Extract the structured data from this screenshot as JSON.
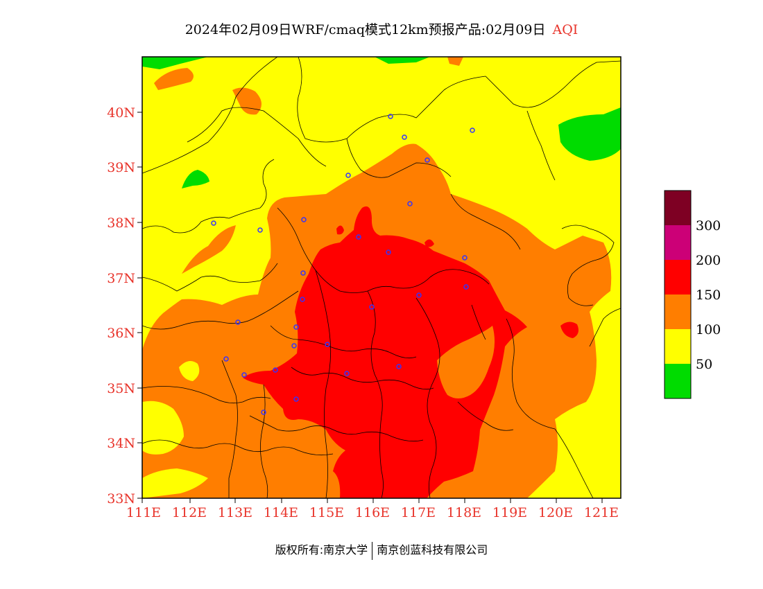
{
  "header": {
    "title": "2024年02月09日WRF/cmaq模式12km预报产品:02月09日",
    "variable_tag": "AQI"
  },
  "credit": {
    "left": "版权所有:南京大学",
    "right": "南京创蓝科技有限公司"
  },
  "axes": {
    "lat_labels": [
      "33N",
      "34N",
      "35N",
      "36N",
      "37N",
      "38N",
      "39N",
      "40N"
    ],
    "lon_labels": [
      "111E",
      "112E",
      "113E",
      "114E",
      "115E",
      "116E",
      "117E",
      "118E",
      "119E",
      "120E",
      "121E"
    ]
  },
  "legend": {
    "colors": [
      "#00dc00",
      "#ffff00",
      "#ff7e00",
      "#ff0000",
      "#cc0077",
      "#7e0023"
    ],
    "labels": [
      "50",
      "100",
      "150",
      "200",
      "300"
    ]
  },
  "colors": {
    "label_red": "#e8332a",
    "city_marker": "#3333ff"
  }
}
